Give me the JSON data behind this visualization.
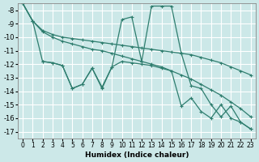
{
  "xlabel": "Humidex (Indice chaleur)",
  "bg_color": "#cce8e8",
  "grid_color": "#ffffff",
  "line_color": "#2e7d6e",
  "xlim": [
    -0.5,
    23.5
  ],
  "ylim": [
    -17.5,
    -7.5
  ],
  "xticks": [
    0,
    1,
    2,
    3,
    4,
    5,
    6,
    7,
    8,
    9,
    10,
    11,
    12,
    13,
    14,
    15,
    16,
    17,
    18,
    19,
    20,
    21,
    22,
    23
  ],
  "yticks": [
    -17,
    -16,
    -15,
    -14,
    -13,
    -12,
    -11,
    -10,
    -9,
    -8
  ],
  "line1_x": [
    0,
    1,
    2,
    3,
    4,
    5,
    6,
    7,
    8,
    9,
    10,
    11,
    12,
    13,
    14,
    15,
    16,
    17,
    18,
    19,
    20,
    21,
    22,
    23
  ],
  "line1_y": [
    -7.5,
    -8.8,
    -9.5,
    -9.8,
    -10.0,
    -10.1,
    -10.2,
    -10.3,
    -10.4,
    -10.5,
    -10.6,
    -10.7,
    -10.8,
    -10.9,
    -11.0,
    -11.1,
    -11.2,
    -11.3,
    -11.5,
    -11.7,
    -11.9,
    -12.2,
    -12.5,
    -12.8
  ],
  "line2_x": [
    0,
    1,
    2,
    3,
    4,
    5,
    6,
    7,
    8,
    9,
    10,
    11,
    12,
    13,
    14,
    15,
    16,
    17,
    18,
    19,
    20,
    21,
    22,
    23
  ],
  "line2_y": [
    -7.5,
    -8.8,
    -9.6,
    -10.0,
    -10.3,
    -10.5,
    -10.7,
    -10.9,
    -11.0,
    -11.2,
    -11.4,
    -11.6,
    -11.8,
    -12.0,
    -12.2,
    -12.5,
    -12.8,
    -13.1,
    -13.5,
    -13.9,
    -14.3,
    -14.8,
    -15.3,
    -15.9
  ],
  "line3_x": [
    0,
    1,
    2,
    3,
    4,
    5,
    6,
    7,
    8,
    9,
    10,
    11,
    12,
    13,
    14,
    15,
    16,
    17,
    18,
    19,
    20,
    21,
    22,
    23
  ],
  "line3_y": [
    -7.5,
    -8.8,
    -11.8,
    -11.9,
    -12.1,
    -13.8,
    -13.5,
    -12.3,
    -13.7,
    -12.2,
    -8.7,
    -8.5,
    -11.8,
    -7.7,
    -7.7,
    -7.7,
    -11.2,
    -13.6,
    -13.8,
    -15.0,
    -15.9,
    -15.1,
    -16.3,
    -16.8
  ],
  "line4_x": [
    2,
    3,
    4,
    5,
    6,
    7,
    8,
    9,
    10,
    11,
    12,
    13,
    14,
    15,
    16,
    17,
    18,
    19,
    20,
    21,
    22,
    23
  ],
  "line4_y": [
    -11.8,
    -11.9,
    -12.1,
    -13.8,
    -13.5,
    -12.3,
    -13.8,
    -12.2,
    -11.8,
    -11.9,
    -12.0,
    -12.1,
    -12.3,
    -12.5,
    -15.1,
    -14.5,
    -15.5,
    -16.0,
    -15.0,
    -16.0,
    -16.3,
    -16.8
  ]
}
